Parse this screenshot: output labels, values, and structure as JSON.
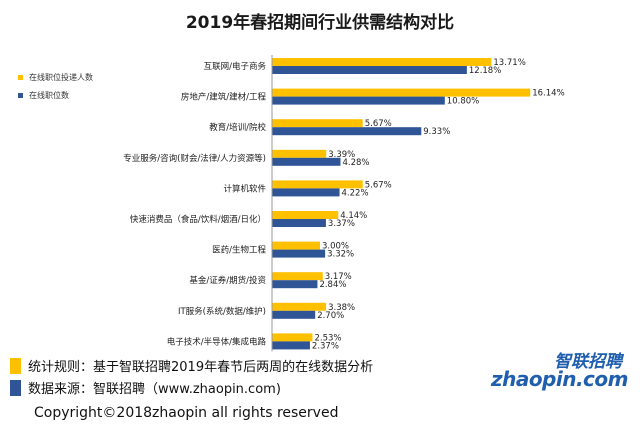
{
  "chart_data": {
    "type": "bar",
    "orientation": "horizontal",
    "title": "2019年春招期间行业供需结构对比",
    "categories": [
      "互联网/电子商务",
      "房地产/建筑/建材/工程",
      "教育/培训/院校",
      "专业服务/咨询(财会/法律/人力资源等)",
      "计算机软件",
      "快速消费品（食品/饮料/烟酒/日化）",
      "医药/生物工程",
      "基金/证券/期货/投资",
      "IT服务(系统/数据/维护)",
      "电子技术/半导体/集成电路"
    ],
    "series": [
      {
        "name": "在线职位投递人数",
        "color": "#FFC000",
        "values": [
          13.71,
          16.14,
          5.67,
          3.39,
          5.67,
          4.14,
          3.0,
          3.17,
          3.38,
          2.53
        ],
        "labels": [
          "13.71%",
          "16.14%",
          "5.67%",
          "3.39%",
          "5.67%",
          "4.14%",
          "3.00%",
          "3.17%",
          "3.38%",
          "2.53%"
        ]
      },
      {
        "name": "在线职位数",
        "color": "#2F5597",
        "values": [
          12.18,
          10.8,
          9.33,
          4.28,
          4.22,
          3.37,
          3.32,
          2.84,
          2.7,
          2.37
        ],
        "labels": [
          "12.18%",
          "10.80%",
          "9.33%",
          "4.28%",
          "4.22%",
          "3.37%",
          "3.32%",
          "2.84%",
          "2.70%",
          "2.37%"
        ]
      }
    ],
    "xlim": [
      0,
      18
    ],
    "grid": false,
    "legend_position": "left"
  },
  "footer": {
    "rule_text": "统计规则：基于智联招聘2019年春节后两周的在线数据分析",
    "source_text": "数据来源：智联招聘（www.zhaopin.com)",
    "copyright": "Copyright©2018zhaopin all rights reserved",
    "rule_color": "#FFC000",
    "source_color": "#2F5597"
  },
  "brand": {
    "name_cn": "智联招聘",
    "name_en": "zhaopin.com"
  }
}
